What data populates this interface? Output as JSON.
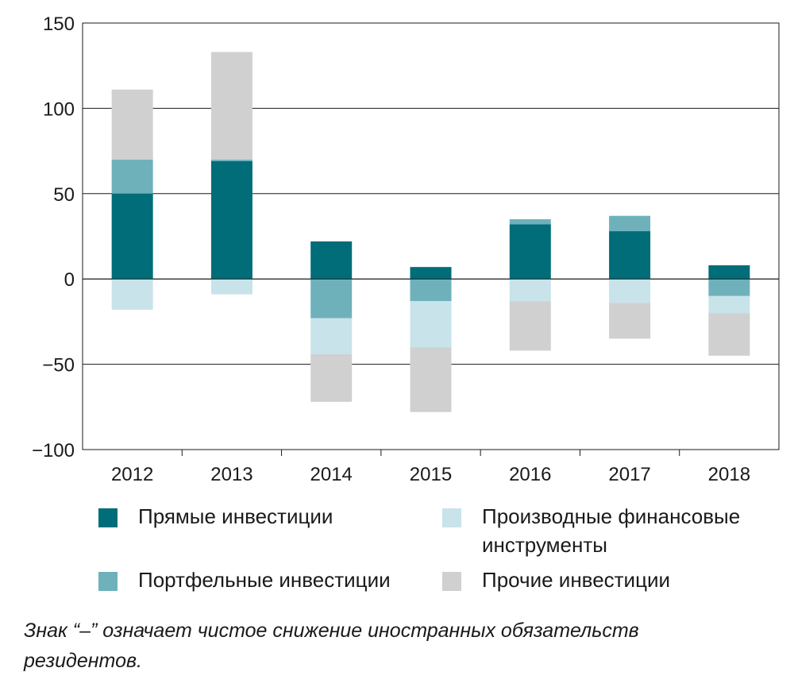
{
  "chart_data": {
    "type": "bar",
    "stacked": true,
    "categories": [
      "2012",
      "2013",
      "2014",
      "2015",
      "2016",
      "2017",
      "2018"
    ],
    "series": [
      {
        "name": "Прямые инвестиции",
        "color": "#006d78",
        "values": [
          50,
          69,
          22,
          7,
          32,
          28,
          8
        ]
      },
      {
        "name": "Портфельные инвестиции",
        "color": "#6fb1bb",
        "values": [
          20,
          1,
          -23,
          -13,
          3,
          9,
          -10
        ]
      },
      {
        "name": "Производные финансовые инструменты",
        "color": "#c8e3ea",
        "values": [
          -18,
          -9,
          -21,
          -27,
          -13,
          -14,
          -10
        ]
      },
      {
        "name": "Прочие инвестиции",
        "color": "#d0d0d0",
        "values": [
          41,
          63,
          -28,
          -38,
          -29,
          -21,
          -25
        ]
      }
    ],
    "ylim": [
      -100,
      150
    ],
    "yticks": [
      -100,
      -50,
      0,
      50,
      100,
      150
    ],
    "ytick_labels": [
      "−100",
      "−50",
      "0",
      "50",
      "100",
      "150"
    ],
    "grid": true,
    "legend_position": "bottom",
    "title": "",
    "xlabel": "",
    "ylabel": ""
  },
  "legend": [
    {
      "label": "Прямые инвестиции",
      "color": "#006d78"
    },
    {
      "label": "Производные финансовые инструменты",
      "color": "#c8e3ea"
    },
    {
      "label": "Портфельные инвестиции",
      "color": "#6fb1bb"
    },
    {
      "label": "Прочие инвестиции",
      "color": "#d0d0d0"
    }
  ],
  "note": "Знак “–” означает чистое снижение иностранных обязательств резидентов."
}
